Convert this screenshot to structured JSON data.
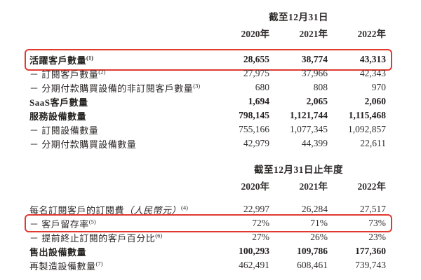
{
  "page": {
    "background": "#ffffff",
    "text_color": "#2b2626",
    "annotation_color": "#e03a30"
  },
  "table1": {
    "period_header": "截至12月31日",
    "years": [
      "2020年",
      "2021年",
      "2022年"
    ],
    "rows": [
      {
        "label": "活躍客戶數量",
        "sup": "(1)",
        "values": [
          "28,655",
          "38,774",
          "43,313"
        ]
      },
      {
        "label": "－ 訂閱客戶數量",
        "sup": "(2)",
        "values": [
          "27,975",
          "37,966",
          "42,343"
        ]
      },
      {
        "label": "－ 分期付款購買設備的非訂閱客戶數量",
        "sup": "(3)",
        "values": [
          "680",
          "808",
          "970"
        ]
      },
      {
        "label": "SaaS客戶數量",
        "sup": "",
        "values": [
          "1,694",
          "2,065",
          "2,060"
        ]
      },
      {
        "label": "服務設備數量",
        "sup": "",
        "values": [
          "798,145",
          "1,121,744",
          "1,115,468"
        ]
      },
      {
        "label": "－ 訂閱設備數量",
        "sup": "",
        "values": [
          "755,166",
          "1,077,345",
          "1,092,857"
        ]
      },
      {
        "label": "－ 分期付款購買設備數量",
        "sup": "",
        "values": [
          "42,979",
          "44,399",
          "22,611"
        ]
      }
    ]
  },
  "table2": {
    "period_header": "截至12月31日止年度",
    "years": [
      "2020年",
      "2021年",
      "2022年"
    ],
    "rows": [
      {
        "label": "每名訂閱客戶的訂閱費",
        "paren": "（人民幣元）",
        "sup": "(4)",
        "values": [
          "22,997",
          "26,284",
          "27,517"
        ]
      },
      {
        "label": "－ 客戶留存率",
        "paren": "",
        "sup": "(5)",
        "values": [
          "72%",
          "71%",
          "73%"
        ]
      },
      {
        "label": "－ 提前終止訂閱的客戶百分比",
        "paren": "",
        "sup": "(6)",
        "values": [
          "27%",
          "26%",
          "23%"
        ]
      },
      {
        "label": "售出設備數量",
        "paren": "",
        "sup": "",
        "values": [
          "100,293",
          "109,786",
          "177,360"
        ]
      },
      {
        "label": "再製造設備數量",
        "paren": "",
        "sup": "(7)",
        "values": [
          "462,491",
          "608,461",
          "739,743"
        ]
      }
    ]
  }
}
